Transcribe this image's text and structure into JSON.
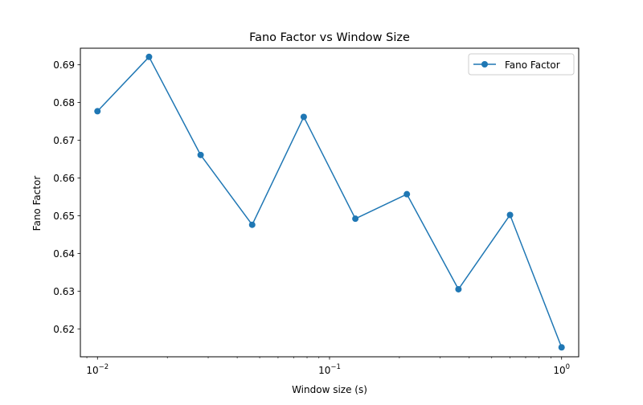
{
  "chart_data": {
    "type": "line",
    "title": "Fano Factor vs Window Size",
    "xlabel": "Window size (s)",
    "ylabel": "Fano Factor",
    "xscale": "log",
    "xlim": [
      0.00844,
      1.185
    ],
    "ylim": [
      0.6126,
      0.6944
    ],
    "grid": false,
    "legend_position": "top-right",
    "x_major_ticks": [
      {
        "value": 0.01,
        "base": "10",
        "exp": "−2"
      },
      {
        "value": 0.1,
        "base": "10",
        "exp": "−1"
      },
      {
        "value": 1,
        "base": "10",
        "exp": "0"
      }
    ],
    "y_ticks": [
      {
        "value": 0.62,
        "label": "0.62"
      },
      {
        "value": 0.63,
        "label": "0.63"
      },
      {
        "value": 0.64,
        "label": "0.64"
      },
      {
        "value": 0.65,
        "label": "0.65"
      },
      {
        "value": 0.66,
        "label": "0.66"
      },
      {
        "value": 0.67,
        "label": "0.67"
      },
      {
        "value": 0.68,
        "label": "0.68"
      },
      {
        "value": 0.69,
        "label": "0.69"
      }
    ],
    "series": [
      {
        "name": "Fano Factor",
        "color": "#1f77b4",
        "marker": "circle",
        "x": [
          0.01,
          0.01668,
          0.02783,
          0.04642,
          0.07743,
          0.1292,
          0.2154,
          0.3594,
          0.5995,
          1.0
        ],
        "y": [
          0.6777,
          0.6921,
          0.6661,
          0.6476,
          0.6762,
          0.6492,
          0.6557,
          0.6305,
          0.6502,
          0.6151
        ]
      }
    ]
  }
}
